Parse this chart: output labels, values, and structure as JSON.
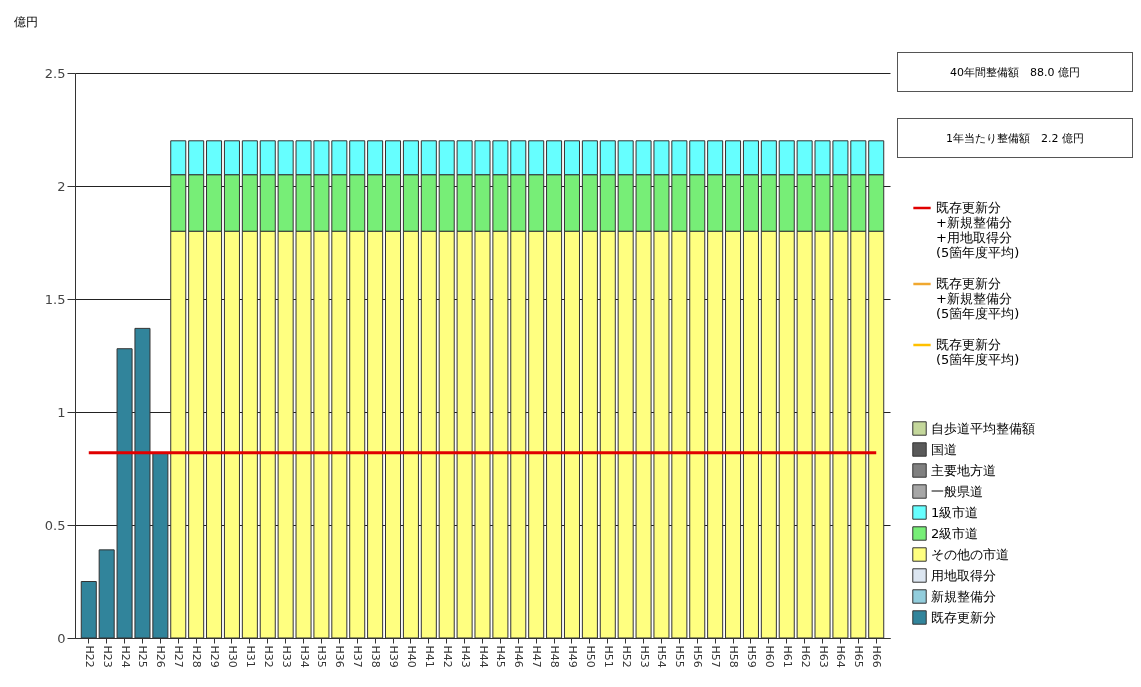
{
  "chart_data": {
    "type": "bar",
    "stacked": true,
    "ylabel": "億円",
    "ylim": [
      0,
      2.5
    ],
    "yticks": [
      0,
      0.5,
      1,
      1.5,
      2,
      2.5
    ],
    "grid": "y",
    "legend": "right",
    "annotations": [
      "40年間整備額　88.0 億円",
      "1年当たり整備額　2.2 億円"
    ],
    "categories": [
      "H22",
      "H23",
      "H24",
      "H25",
      "H26",
      "H27",
      "H28",
      "H29",
      "H30",
      "H31",
      "H32",
      "H33",
      "H34",
      "H35",
      "H36",
      "H37",
      "H38",
      "H39",
      "H40",
      "H41",
      "H42",
      "H43",
      "H44",
      "H45",
      "H46",
      "H47",
      "H48",
      "H49",
      "H50",
      "H51",
      "H52",
      "H53",
      "H54",
      "H55",
      "H56",
      "H57",
      "H58",
      "H59",
      "H60",
      "H61",
      "H62",
      "H63",
      "H64",
      "H65",
      "H66"
    ],
    "series": [
      {
        "name": "既存更新分",
        "color": "#31849b",
        "values": [
          0.25,
          0.39,
          1.28,
          1.37,
          0.82,
          null,
          null,
          null,
          null,
          null,
          null,
          null,
          null,
          null,
          null,
          null,
          null,
          null,
          null,
          null,
          null,
          null,
          null,
          null,
          null,
          null,
          null,
          null,
          null,
          null,
          null,
          null,
          null,
          null,
          null,
          null,
          null,
          null,
          null,
          null,
          null,
          null,
          null,
          null,
          null
        ]
      },
      {
        "name": "新規整備分",
        "color": "#92cddc",
        "values": [
          null,
          null,
          null,
          null,
          null,
          null,
          null,
          null,
          null,
          null,
          null,
          null,
          null,
          null,
          null,
          null,
          null,
          null,
          null,
          null,
          null,
          null,
          null,
          null,
          null,
          null,
          null,
          null,
          null,
          null,
          null,
          null,
          null,
          null,
          null,
          null,
          null,
          null,
          null,
          null,
          null,
          null,
          null,
          null,
          null
        ]
      },
      {
        "name": "用地取得分",
        "color": "#dce6f1",
        "values": [
          null,
          null,
          null,
          null,
          null,
          null,
          null,
          null,
          null,
          null,
          null,
          null,
          null,
          null,
          null,
          null,
          null,
          null,
          null,
          null,
          null,
          null,
          null,
          null,
          null,
          null,
          null,
          null,
          null,
          null,
          null,
          null,
          null,
          null,
          null,
          null,
          null,
          null,
          null,
          null,
          null,
          null,
          null,
          null,
          null
        ]
      },
      {
        "name": "その他の市道",
        "color": "#ffff80",
        "values": [
          null,
          null,
          null,
          null,
          null,
          1.8,
          1.8,
          1.8,
          1.8,
          1.8,
          1.8,
          1.8,
          1.8,
          1.8,
          1.8,
          1.8,
          1.8,
          1.8,
          1.8,
          1.8,
          1.8,
          1.8,
          1.8,
          1.8,
          1.8,
          1.8,
          1.8,
          1.8,
          1.8,
          1.8,
          1.8,
          1.8,
          1.8,
          1.8,
          1.8,
          1.8,
          1.8,
          1.8,
          1.8,
          1.8,
          1.8,
          1.8,
          1.8,
          1.8,
          1.8
        ]
      },
      {
        "name": "2級市道",
        "color": "#77ee77",
        "values": [
          null,
          null,
          null,
          null,
          null,
          0.25,
          0.25,
          0.25,
          0.25,
          0.25,
          0.25,
          0.25,
          0.25,
          0.25,
          0.25,
          0.25,
          0.25,
          0.25,
          0.25,
          0.25,
          0.25,
          0.25,
          0.25,
          0.25,
          0.25,
          0.25,
          0.25,
          0.25,
          0.25,
          0.25,
          0.25,
          0.25,
          0.25,
          0.25,
          0.25,
          0.25,
          0.25,
          0.25,
          0.25,
          0.25,
          0.25,
          0.25,
          0.25,
          0.25,
          0.25
        ]
      },
      {
        "name": "1級市道",
        "color": "#66ffff",
        "values": [
          null,
          null,
          null,
          null,
          null,
          0.15,
          0.15,
          0.15,
          0.15,
          0.15,
          0.15,
          0.15,
          0.15,
          0.15,
          0.15,
          0.15,
          0.15,
          0.15,
          0.15,
          0.15,
          0.15,
          0.15,
          0.15,
          0.15,
          0.15,
          0.15,
          0.15,
          0.15,
          0.15,
          0.15,
          0.15,
          0.15,
          0.15,
          0.15,
          0.15,
          0.15,
          0.15,
          0.15,
          0.15,
          0.15,
          0.15,
          0.15,
          0.15,
          0.15,
          0.15
        ]
      },
      {
        "name": "一般県道",
        "color": "#a6a6a6",
        "values": [
          null,
          null,
          null,
          null,
          null,
          null,
          null,
          null,
          null,
          null,
          null,
          null,
          null,
          null,
          null,
          null,
          null,
          null,
          null,
          null,
          null,
          null,
          null,
          null,
          null,
          null,
          null,
          null,
          null,
          null,
          null,
          null,
          null,
          null,
          null,
          null,
          null,
          null,
          null,
          null,
          null,
          null,
          null,
          null,
          null
        ]
      },
      {
        "name": "主要地方道",
        "color": "#808080",
        "values": [
          null,
          null,
          null,
          null,
          null,
          null,
          null,
          null,
          null,
          null,
          null,
          null,
          null,
          null,
          null,
          null,
          null,
          null,
          null,
          null,
          null,
          null,
          null,
          null,
          null,
          null,
          null,
          null,
          null,
          null,
          null,
          null,
          null,
          null,
          null,
          null,
          null,
          null,
          null,
          null,
          null,
          null,
          null,
          null,
          null
        ]
      },
      {
        "name": "国道",
        "color": "#595959",
        "values": [
          null,
          null,
          null,
          null,
          null,
          null,
          null,
          null,
          null,
          null,
          null,
          null,
          null,
          null,
          null,
          null,
          null,
          null,
          null,
          null,
          null,
          null,
          null,
          null,
          null,
          null,
          null,
          null,
          null,
          null,
          null,
          null,
          null,
          null,
          null,
          null,
          null,
          null,
          null,
          null,
          null,
          null,
          null,
          null,
          null
        ]
      },
      {
        "name": "自歩道平均整備額",
        "color": "#c4d79b",
        "values": [
          null,
          null,
          null,
          null,
          null,
          null,
          null,
          null,
          null,
          null,
          null,
          null,
          null,
          null,
          null,
          null,
          null,
          null,
          null,
          null,
          null,
          null,
          null,
          null,
          null,
          null,
          null,
          null,
          null,
          null,
          null,
          null,
          null,
          null,
          null,
          null,
          null,
          null,
          null,
          null,
          null,
          null,
          null,
          null,
          null
        ]
      },
      {
        "name": "既存更新分\n+新規整備分\n+用地取得分\n(5箇年度平均)",
        "type": "line",
        "color": "#e00000",
        "values": [
          0.82,
          0.82,
          0.82,
          0.82,
          0.82,
          0.82,
          0.82,
          0.82,
          0.82,
          0.82,
          0.82,
          0.82,
          0.82,
          0.82,
          0.82,
          0.82,
          0.82,
          0.82,
          0.82,
          0.82,
          0.82,
          0.82,
          0.82,
          0.82,
          0.82,
          0.82,
          0.82,
          0.82,
          0.82,
          0.82,
          0.82,
          0.82,
          0.82,
          0.82,
          0.82,
          0.82,
          0.82,
          0.82,
          0.82,
          0.82,
          0.82,
          0.82,
          0.82,
          0.82,
          0.82
        ]
      },
      {
        "name": "既存更新分\n+新規整備分\n(5箇年度平均)",
        "type": "line",
        "color": "#f0a830",
        "values": [
          null,
          null,
          null,
          null,
          null,
          null,
          null,
          null,
          null,
          null,
          null,
          null,
          null,
          null,
          null,
          null,
          null,
          null,
          null,
          null,
          null,
          null,
          null,
          null,
          null,
          null,
          null,
          null,
          null,
          null,
          null,
          null,
          null,
          null,
          null,
          null,
          null,
          null,
          null,
          null,
          null,
          null,
          null,
          null,
          null
        ]
      },
      {
        "name": "既存更新分\n(5箇年度平均)",
        "type": "line",
        "color": "#ffc000",
        "values": [
          null,
          null,
          null,
          null,
          null,
          null,
          null,
          null,
          null,
          null,
          null,
          null,
          null,
          null,
          null,
          null,
          null,
          null,
          null,
          null,
          null,
          null,
          null,
          null,
          null,
          null,
          null,
          null,
          null,
          null,
          null,
          null,
          null,
          null,
          null,
          null,
          null,
          null,
          null,
          null,
          null,
          null,
          null,
          null,
          null
        ]
      }
    ]
  }
}
